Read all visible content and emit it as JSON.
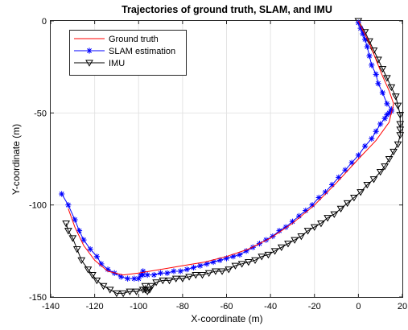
{
  "chart_data": {
    "type": "line",
    "title": "Trajectories of ground truth, SLAM, and IMU",
    "xlabel": "X-coordinate (m)",
    "ylabel": "Y-coordinate (m)",
    "xlim": [
      -140,
      20
    ],
    "ylim": [
      -150,
      0
    ],
    "xticks": [
      -140,
      -120,
      -100,
      -80,
      -60,
      -40,
      -20,
      0,
      20
    ],
    "yticks": [
      -150,
      -100,
      -50,
      0
    ],
    "grid": true,
    "legend_position": "top-left",
    "series": [
      {
        "name": "Ground truth",
        "color": "#ff0000",
        "marker": "none",
        "points": [
          [
            -132,
            -102
          ],
          [
            -129,
            -112
          ],
          [
            -125,
            -122
          ],
          [
            -120,
            -130
          ],
          [
            -114,
            -136
          ],
          [
            -107,
            -138
          ],
          [
            -100,
            -137
          ],
          [
            -90,
            -135
          ],
          [
            -80,
            -133
          ],
          [
            -70,
            -131
          ],
          [
            -60,
            -128
          ],
          [
            -50,
            -124
          ],
          [
            -40,
            -118
          ],
          [
            -30,
            -110
          ],
          [
            -20,
            -100
          ],
          [
            -10,
            -88
          ],
          [
            0,
            -75
          ],
          [
            8,
            -65
          ],
          [
            14,
            -55
          ],
          [
            16,
            -45
          ],
          [
            14,
            -38
          ],
          [
            11,
            -30
          ],
          [
            8,
            -21
          ],
          [
            5,
            -12
          ],
          [
            2,
            -5
          ],
          [
            0,
            0
          ]
        ]
      },
      {
        "name": "SLAM estimation",
        "color": "#0000ff",
        "marker": "asterisk",
        "points": [
          [
            -135,
            -94
          ],
          [
            -132,
            -100
          ],
          [
            -129,
            -108
          ],
          [
            -127,
            -114
          ],
          [
            -125,
            -119
          ],
          [
            -122,
            -124
          ],
          [
            -119,
            -128
          ],
          [
            -117,
            -132
          ],
          [
            -114,
            -135
          ],
          [
            -111,
            -137
          ],
          [
            -108,
            -139
          ],
          [
            -105,
            -140
          ],
          [
            -102,
            -140
          ],
          [
            -100,
            -140
          ],
          [
            -99,
            -138
          ],
          [
            -98,
            -136
          ],
          [
            -98,
            -138
          ],
          [
            -96,
            -138
          ],
          [
            -93,
            -138
          ],
          [
            -90,
            -137
          ],
          [
            -87,
            -137
          ],
          [
            -84,
            -136
          ],
          [
            -81,
            -136
          ],
          [
            -78,
            -135
          ],
          [
            -75,
            -134
          ],
          [
            -72,
            -133
          ],
          [
            -69,
            -132
          ],
          [
            -66,
            -131
          ],
          [
            -63,
            -130
          ],
          [
            -60,
            -129
          ],
          [
            -57,
            -128
          ],
          [
            -54,
            -127
          ],
          [
            -51,
            -125
          ],
          [
            -48,
            -123
          ],
          [
            -45,
            -121
          ],
          [
            -42,
            -119
          ],
          [
            -39,
            -117
          ],
          [
            -36,
            -114
          ],
          [
            -33,
            -112
          ],
          [
            -30,
            -109
          ],
          [
            -27,
            -106
          ],
          [
            -24,
            -103
          ],
          [
            -21,
            -100
          ],
          [
            -18,
            -96
          ],
          [
            -15,
            -93
          ],
          [
            -12,
            -89
          ],
          [
            -9,
            -85
          ],
          [
            -6,
            -81
          ],
          [
            -3,
            -77
          ],
          [
            0,
            -73
          ],
          [
            3,
            -68
          ],
          [
            6,
            -64
          ],
          [
            8,
            -60
          ],
          [
            10,
            -56
          ],
          [
            12,
            -53
          ],
          [
            13,
            -51
          ],
          [
            14,
            -50
          ],
          [
            15,
            -49
          ],
          [
            15,
            -48
          ],
          [
            13,
            -45
          ],
          [
            11,
            -39
          ],
          [
            9,
            -34
          ],
          [
            8,
            -29
          ],
          [
            6,
            -24
          ],
          [
            5,
            -19
          ],
          [
            4,
            -14
          ],
          [
            3,
            -10
          ],
          [
            2,
            -7
          ],
          [
            1,
            -4
          ],
          [
            0,
            -1
          ]
        ]
      },
      {
        "name": "IMU",
        "color": "#000000",
        "marker": "triangle-down",
        "points": [
          [
            0,
            0
          ],
          [
            3,
            -6
          ],
          [
            5,
            -11
          ],
          [
            7,
            -16
          ],
          [
            9,
            -21
          ],
          [
            11,
            -26
          ],
          [
            13,
            -31
          ],
          [
            15,
            -36
          ],
          [
            17,
            -41
          ],
          [
            18,
            -46
          ],
          [
            19,
            -51
          ],
          [
            19,
            -56
          ],
          [
            19,
            -59
          ],
          [
            19,
            -62
          ],
          [
            18,
            -67
          ],
          [
            16,
            -71
          ],
          [
            14,
            -75
          ],
          [
            12,
            -79
          ],
          [
            10,
            -82
          ],
          [
            7,
            -86
          ],
          [
            4,
            -89
          ],
          [
            1,
            -93
          ],
          [
            -2,
            -96
          ],
          [
            -5,
            -99
          ],
          [
            -8,
            -102
          ],
          [
            -11,
            -105
          ],
          [
            -14,
            -107
          ],
          [
            -17,
            -110
          ],
          [
            -20,
            -112
          ],
          [
            -23,
            -114
          ],
          [
            -26,
            -117
          ],
          [
            -29,
            -119
          ],
          [
            -32,
            -121
          ],
          [
            -35,
            -123
          ],
          [
            -38,
            -125
          ],
          [
            -41,
            -127
          ],
          [
            -44,
            -128
          ],
          [
            -47,
            -130
          ],
          [
            -50,
            -131
          ],
          [
            -53,
            -132
          ],
          [
            -56,
            -133
          ],
          [
            -59,
            -135
          ],
          [
            -62,
            -136
          ],
          [
            -65,
            -136
          ],
          [
            -68,
            -137
          ],
          [
            -71,
            -138
          ],
          [
            -74,
            -138
          ],
          [
            -77,
            -139
          ],
          [
            -80,
            -140
          ],
          [
            -83,
            -140
          ],
          [
            -86,
            -141
          ],
          [
            -89,
            -141
          ],
          [
            -92,
            -142
          ],
          [
            -94,
            -144
          ],
          [
            -95,
            -146
          ],
          [
            -96,
            -147
          ],
          [
            -97,
            -146
          ],
          [
            -97,
            -144
          ],
          [
            -98,
            -146
          ],
          [
            -101,
            -147
          ],
          [
            -104,
            -147
          ],
          [
            -107,
            -148
          ],
          [
            -110,
            -148
          ],
          [
            -113,
            -146
          ],
          [
            -116,
            -144
          ],
          [
            -119,
            -141
          ],
          [
            -121,
            -138
          ],
          [
            -123,
            -135
          ],
          [
            -126,
            -130
          ],
          [
            -128,
            -124
          ],
          [
            -130,
            -118
          ],
          [
            -132,
            -114
          ],
          [
            -133,
            -110
          ]
        ]
      }
    ]
  }
}
